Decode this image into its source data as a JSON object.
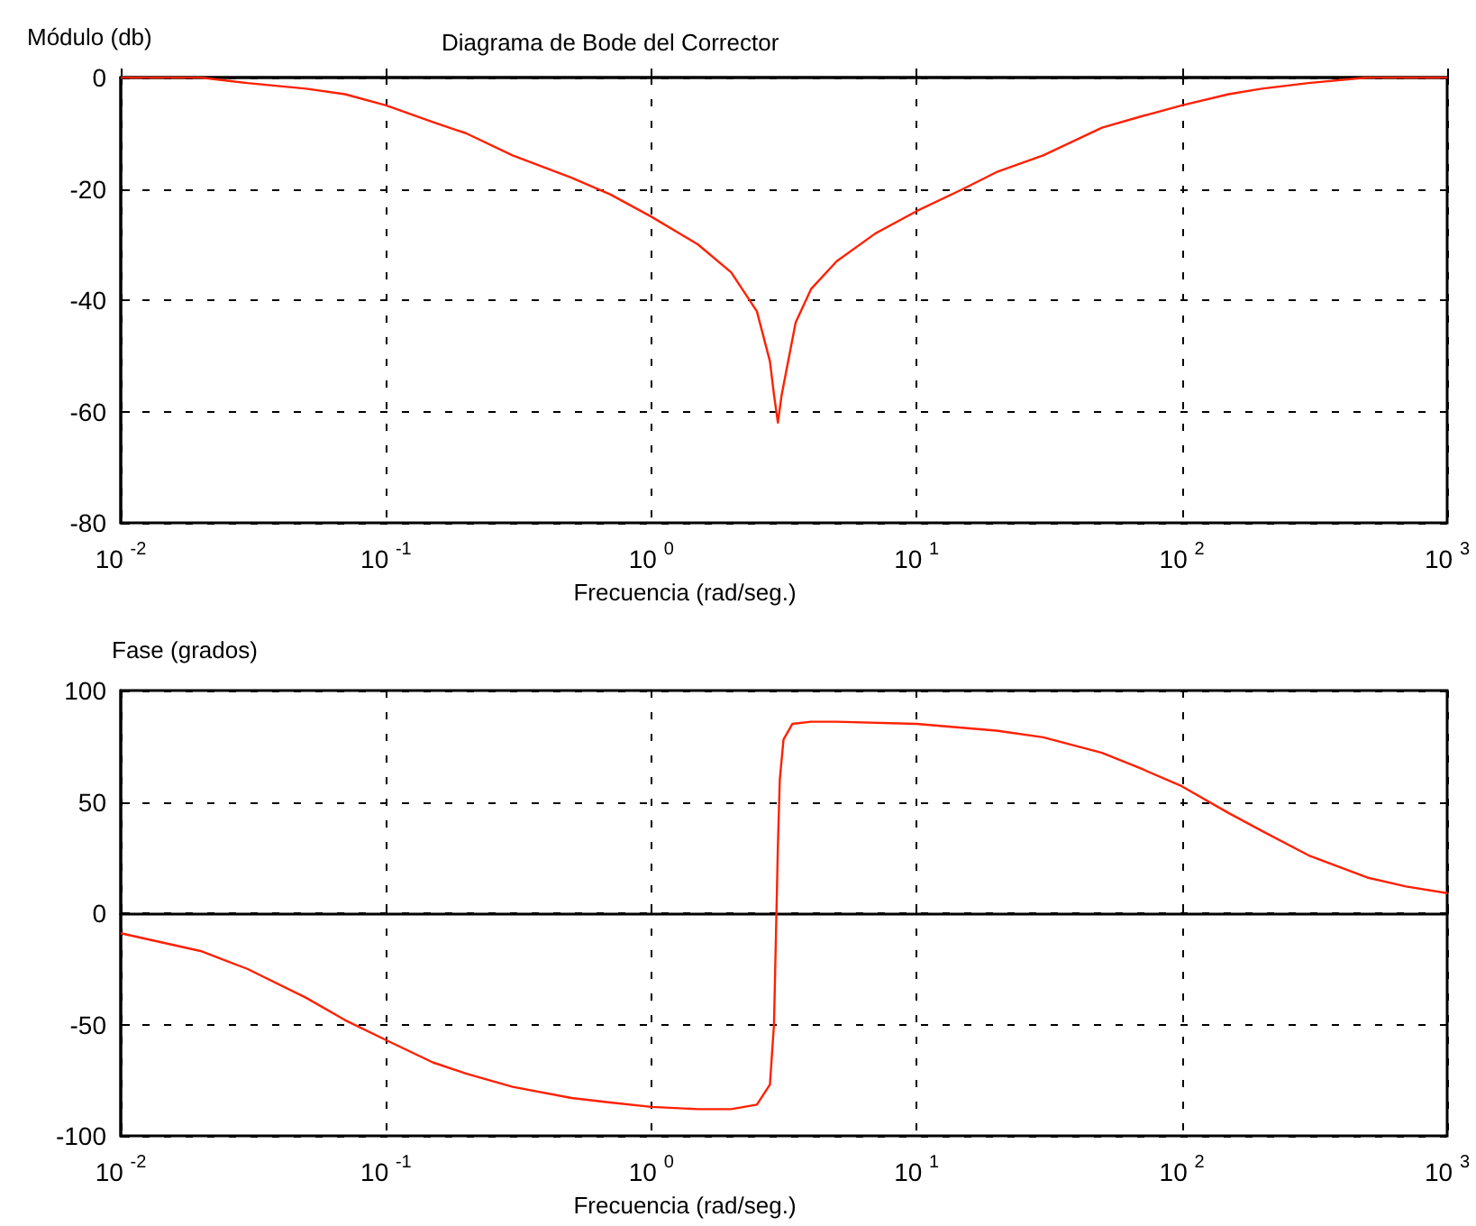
{
  "chart_data": [
    {
      "type": "line",
      "title": "Diagrama de Bode del Corrector",
      "ylabel": "Módulo (db)",
      "xlabel": "Frecuencia (rad/seg.)",
      "log": "x",
      "grid": true,
      "x": [
        0.01,
        0.02,
        0.03,
        0.05,
        0.07,
        0.1,
        0.15,
        0.2,
        0.3,
        0.5,
        0.7,
        1,
        1.5,
        2,
        2.5,
        2.8,
        2.9,
        3,
        3.1,
        3.5,
        4,
        5,
        7,
        10,
        15,
        20,
        30,
        50,
        70,
        100,
        150,
        200,
        300,
        500,
        700,
        1000
      ],
      "series": [
        {
          "color": "#ff2000",
          "values": [
            0,
            0,
            -1,
            -2,
            -3,
            -5,
            -8,
            -10,
            -14,
            -18,
            -21,
            -25,
            -30,
            -35,
            -42,
            -51,
            -57,
            -62,
            -57,
            -44,
            -38,
            -33,
            -28,
            -24,
            -20,
            -17,
            -14,
            -9,
            -7,
            -5,
            -3,
            -2,
            -1,
            0,
            0,
            0
          ]
        }
      ],
      "xlim": [
        0.01,
        1000
      ],
      "xticks": [
        {
          "value": 0.01,
          "label": "10$^{-2}$"
        },
        {
          "value": 0.1,
          "label": "10$^{-1}$"
        },
        {
          "value": 1,
          "label": "10$^{0}$"
        },
        {
          "value": 10,
          "label": "10$^{1}$"
        },
        {
          "value": 100,
          "label": "10$^{2}$"
        },
        {
          "value": 1000,
          "label": "10$^{3}$"
        }
      ],
      "ylim": [
        -80,
        0
      ],
      "yticks": [
        -80,
        -60,
        -40,
        -20,
        0
      ]
    },
    {
      "type": "line",
      "ylabel": "Fase (grados)",
      "xlabel": "Frecuencia (rad/seg.)",
      "log": "x",
      "grid": true,
      "x": [
        0.01,
        0.02,
        0.03,
        0.05,
        0.07,
        0.1,
        0.15,
        0.2,
        0.3,
        0.5,
        0.7,
        1,
        1.5,
        2,
        2.5,
        2.8,
        2.9,
        2.95,
        3,
        3.05,
        3.15,
        3.4,
        4,
        5,
        10,
        20,
        30,
        50,
        70,
        100,
        150,
        200,
        300,
        500,
        700,
        1000
      ],
      "series": [
        {
          "color": "#ff2000",
          "values": [
            -9,
            -17,
            -25,
            -38,
            -48,
            -57,
            -67,
            -72,
            -78,
            -83,
            -85,
            -87,
            -88,
            -88,
            -86,
            -77,
            -50,
            -10,
            30,
            60,
            78,
            85,
            86,
            86,
            85,
            82,
            79,
            72,
            65,
            57,
            45,
            37,
            26,
            16,
            12,
            9
          ]
        }
      ],
      "xlim": [
        0.01,
        1000
      ],
      "xticks": [
        {
          "value": 0.01,
          "label": "10$^{-2}$"
        },
        {
          "value": 0.1,
          "label": "10$^{-1}$"
        },
        {
          "value": 1,
          "label": "10$^{0}$"
        },
        {
          "value": 10,
          "label": "10$^{1}$"
        },
        {
          "value": 100,
          "label": "10$^{2}$"
        },
        {
          "value": 1000,
          "label": "10$^{3}$"
        }
      ],
      "ylim": [
        -100,
        100
      ],
      "yticks": [
        -100,
        -50,
        0,
        50,
        100
      ]
    }
  ]
}
